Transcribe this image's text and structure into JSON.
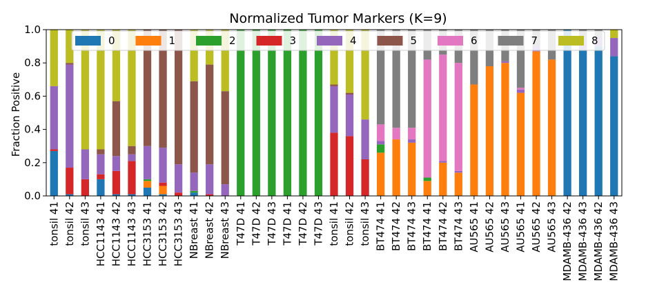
{
  "chart_data": {
    "type": "bar",
    "stacked": true,
    "title": "Normalized Tumor Markers (K=9)",
    "xlabel": "",
    "ylabel": "Fraction Positive",
    "ylim": [
      0,
      1.0
    ],
    "yticks": [
      "0.0",
      "0.2",
      "0.4",
      "0.6",
      "0.8",
      "1.0"
    ],
    "grid": false,
    "legend_position": "top",
    "categories": [
      "tonsil 41",
      "tonsil 42",
      "tonsil 43",
      "HCC1143 41",
      "HCC1143 42",
      "HCC1143 43",
      "HCC3153 41",
      "HCC3153 42",
      "HCC3153 43",
      "NBreast 41",
      "NBreast 42",
      "NBreast 43",
      "T47D 41",
      "T47D 42",
      "T47D 43",
      "T47D 41",
      "T47D 42",
      "T47D 43",
      "tonsil 41",
      "tonsil 42",
      "tonsil 43",
      "BT474 41",
      "BT474 42",
      "BT474 43",
      "BT474 41",
      "BT474 42",
      "BT474 43",
      "AU565 41",
      "AU565 42",
      "AU565 43",
      "AU565 41",
      "AU565 42",
      "AU565 43",
      "MDAMB-436 42",
      "MDAMB-436 43",
      "MDAMB-436 42",
      "MDAMB-436 43"
    ],
    "series": [
      {
        "name": "0",
        "color": "#1f77b4",
        "values": [
          0.27,
          0.01,
          0,
          0.1,
          0.01,
          0.01,
          0.05,
          0.01,
          0,
          0.02,
          0,
          0,
          0,
          0,
          0,
          0,
          0,
          0,
          0,
          0,
          0,
          0,
          0,
          0,
          0,
          0,
          0,
          0,
          0,
          0,
          0,
          0,
          0,
          1.0,
          0.88,
          0.9,
          0.84
        ]
      },
      {
        "name": "1",
        "color": "#ff7f0e",
        "values": [
          0,
          0,
          0,
          0,
          0,
          0,
          0.04,
          0.05,
          0,
          0,
          0,
          0,
          0,
          0,
          0,
          0,
          0,
          0,
          0,
          0,
          0,
          0.26,
          0.34,
          0.32,
          0.09,
          0.2,
          0.14,
          0.67,
          0.78,
          0.8,
          0.62,
          0.87,
          0.82,
          0,
          0,
          0,
          0
        ]
      },
      {
        "name": "2",
        "color": "#2ca02c",
        "values": [
          0,
          0,
          0,
          0,
          0,
          0,
          0.01,
          0,
          0,
          0.01,
          0,
          0,
          1.0,
          1.0,
          1.0,
          1.0,
          1.0,
          1.0,
          0,
          0,
          0,
          0.05,
          0,
          0,
          0.02,
          0,
          0,
          0,
          0,
          0,
          0,
          0,
          0,
          0,
          0,
          0,
          0
        ]
      },
      {
        "name": "3",
        "color": "#d62728",
        "values": [
          0.01,
          0.16,
          0.1,
          0.03,
          0.14,
          0.2,
          0,
          0.02,
          0.02,
          0,
          0.01,
          0,
          0,
          0,
          0,
          0,
          0,
          0,
          0.38,
          0.36,
          0.22,
          0,
          0,
          0,
          0,
          0,
          0,
          0,
          0,
          0,
          0,
          0,
          0,
          0,
          0,
          0,
          0
        ]
      },
      {
        "name": "4",
        "color": "#9467bd",
        "values": [
          0.38,
          0.62,
          0.18,
          0.12,
          0.09,
          0.04,
          0.2,
          0.21,
          0.17,
          0.11,
          0.18,
          0.07,
          0,
          0,
          0,
          0,
          0,
          0,
          0.28,
          0.25,
          0.24,
          0.02,
          0,
          0.02,
          0,
          0.01,
          0.01,
          0,
          0,
          0.01,
          0.02,
          0.03,
          0,
          0,
          0.04,
          0.06,
          0.11
        ]
      },
      {
        "name": "5",
        "color": "#8c564b",
        "values": [
          0,
          0.01,
          0,
          0.03,
          0.33,
          0.05,
          0.7,
          0.71,
          0.81,
          0.55,
          0.6,
          0.56,
          0,
          0,
          0,
          0,
          0,
          0,
          0.01,
          0.01,
          0,
          0,
          0,
          0,
          0,
          0,
          0,
          0,
          0,
          0,
          0,
          0,
          0,
          0,
          0,
          0,
          0
        ]
      },
      {
        "name": "6",
        "color": "#e377c2",
        "values": [
          0,
          0,
          0,
          0,
          0,
          0,
          0,
          0,
          0,
          0,
          0,
          0,
          0,
          0,
          0,
          0,
          0,
          0,
          0,
          0,
          0,
          0.1,
          0.07,
          0.07,
          0.71,
          0.64,
          0.65,
          0,
          0,
          0,
          0.01,
          0,
          0,
          0,
          0,
          0,
          0
        ]
      },
      {
        "name": "7",
        "color": "#7f7f7f",
        "values": [
          0,
          0,
          0,
          0,
          0,
          0,
          0,
          0,
          0,
          0,
          0,
          0,
          0,
          0,
          0,
          0,
          0,
          0,
          0,
          0,
          0,
          0.57,
          0.59,
          0.59,
          0.18,
          0.15,
          0.2,
          0.33,
          0.22,
          0.19,
          0.35,
          0.1,
          0.18,
          0,
          0.08,
          0.04,
          0
        ]
      },
      {
        "name": "8",
        "color": "#bcbd22",
        "values": [
          0.34,
          0.2,
          0.72,
          0.72,
          0.43,
          0.7,
          0,
          0,
          0,
          0.31,
          0.21,
          0.37,
          0,
          0,
          0,
          0,
          0,
          0,
          0.33,
          0.38,
          0.54,
          0,
          0,
          0,
          0,
          0,
          0,
          0,
          0,
          0,
          0,
          0,
          0,
          0,
          0,
          0,
          0.05
        ]
      }
    ]
  }
}
